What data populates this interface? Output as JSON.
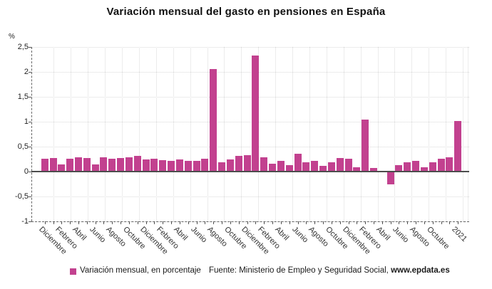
{
  "header": {
    "title": "Variación mensual del gasto en pensiones en España"
  },
  "y_axis": {
    "unit_label": "%",
    "tick_labels": [
      "2,5",
      "2",
      "1,5",
      "1",
      "0,5",
      "0",
      "-0,5",
      "-1"
    ],
    "tick_values": [
      2.5,
      2,
      1.5,
      1,
      0.5,
      0,
      -0.5,
      -1
    ]
  },
  "legend": {
    "label": "Variación mensual, en porcentaje",
    "swatch_color": "#c2418f"
  },
  "source": {
    "prefix": "Fuente: Ministerio de Empleo y Seguridad Social, ",
    "bold_link": "www.epdata.es"
  },
  "chart_data": {
    "type": "bar",
    "title": "Variación mensual del gasto en pensiones en España",
    "xlabel": "",
    "ylabel": "%",
    "ylim": [
      -1,
      2.5
    ],
    "y_tick_step": 0.5,
    "grid": true,
    "legend_position": "bottom",
    "bar_color": "#c2418f",
    "series_name": "Variación mensual, en porcentaje",
    "bars": [
      {
        "tick": "Diciembre",
        "value": 0.26
      },
      {
        "tick": "",
        "value": 0.27
      },
      {
        "tick": "Febrero",
        "value": 0.14
      },
      {
        "tick": "",
        "value": 0.26
      },
      {
        "tick": "Abril",
        "value": 0.28
      },
      {
        "tick": "",
        "value": 0.27
      },
      {
        "tick": "Junio",
        "value": 0.14
      },
      {
        "tick": "",
        "value": 0.28
      },
      {
        "tick": "Agosto",
        "value": 0.25
      },
      {
        "tick": "",
        "value": 0.27
      },
      {
        "tick": "Octubre",
        "value": 0.28
      },
      {
        "tick": "",
        "value": 0.32
      },
      {
        "tick": "Diciembre",
        "value": 0.24
      },
      {
        "tick": "",
        "value": 0.26
      },
      {
        "tick": "Febrero",
        "value": 0.23
      },
      {
        "tick": "",
        "value": 0.21
      },
      {
        "tick": "Abril",
        "value": 0.24
      },
      {
        "tick": "",
        "value": 0.21
      },
      {
        "tick": "Junio",
        "value": 0.22
      },
      {
        "tick": "",
        "value": 0.26
      },
      {
        "tick": "Agosto",
        "value": 2.05
      },
      {
        "tick": "",
        "value": 0.19
      },
      {
        "tick": "Octubre",
        "value": 0.24
      },
      {
        "tick": "",
        "value": 0.32
      },
      {
        "tick": "Diciembre",
        "value": 0.33
      },
      {
        "tick": "",
        "value": 2.33
      },
      {
        "tick": "Febrero",
        "value": 0.29
      },
      {
        "tick": "",
        "value": 0.15
      },
      {
        "tick": "Abril",
        "value": 0.21
      },
      {
        "tick": "",
        "value": 0.13
      },
      {
        "tick": "Junio",
        "value": 0.35
      },
      {
        "tick": "",
        "value": 0.19
      },
      {
        "tick": "Agosto",
        "value": 0.22
      },
      {
        "tick": "",
        "value": 0.12
      },
      {
        "tick": "Octubre",
        "value": 0.19
      },
      {
        "tick": "",
        "value": 0.27
      },
      {
        "tick": "Diciembre",
        "value": 0.25
      },
      {
        "tick": "",
        "value": 0.09
      },
      {
        "tick": "Febrero",
        "value": 1.04
      },
      {
        "tick": "",
        "value": 0.07
      },
      {
        "tick": "Abril",
        "value": 0.01
      },
      {
        "tick": "",
        "value": -0.25
      },
      {
        "tick": "Junio",
        "value": 0.13
      },
      {
        "tick": "",
        "value": 0.19
      },
      {
        "tick": "Agosto",
        "value": 0.21
      },
      {
        "tick": "",
        "value": 0.08
      },
      {
        "tick": "Octubre",
        "value": 0.18
      },
      {
        "tick": "",
        "value": 0.25
      },
      {
        "tick": "",
        "value": 0.29
      },
      {
        "tick": "2021",
        "value": 1.01
      }
    ]
  }
}
